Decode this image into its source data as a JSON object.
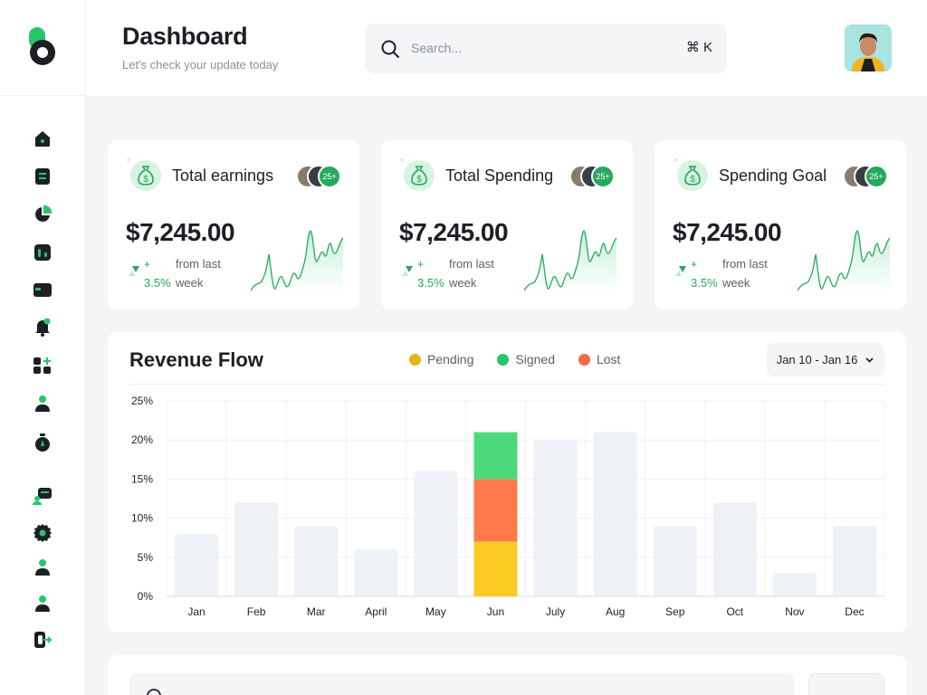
{
  "header": {
    "title": "Dashboard",
    "subtitle": "Let's check your update today",
    "search_placeholder": "Search...",
    "search_shortcut": "⌘ K"
  },
  "sidebar": {
    "items": [
      {
        "icon": "home-icon"
      },
      {
        "icon": "document-icon"
      },
      {
        "icon": "pie-chart-icon"
      },
      {
        "icon": "bar-chart-icon"
      },
      {
        "icon": "wallet-icon"
      },
      {
        "icon": "bell-icon"
      },
      {
        "icon": "apps-add-icon"
      },
      {
        "icon": "user-icon"
      },
      {
        "icon": "timer-icon"
      },
      {
        "icon": "message-user-icon"
      },
      {
        "icon": "gear-icon"
      },
      {
        "icon": "user-icon-2"
      },
      {
        "icon": "user-icon-3"
      },
      {
        "icon": "logout-icon"
      }
    ]
  },
  "cards": [
    {
      "title": "Total earnings",
      "value": "$7,245.00",
      "trend_sign": "+",
      "trend_pct": "3.5%",
      "trend_from": "from last",
      "trend_week": "week",
      "avatar_count": "25+"
    },
    {
      "title": "Total Spending",
      "value": "$7,245.00",
      "trend_sign": "+",
      "trend_pct": "3.5%",
      "trend_from": "from last",
      "trend_week": "week",
      "avatar_count": "25+"
    },
    {
      "title": "Spending Goal",
      "value": "$7,245.00",
      "trend_sign": "+",
      "trend_pct": "3.5%",
      "trend_from": "from last",
      "trend_week": "week",
      "avatar_count": "25+"
    }
  ],
  "revenue": {
    "title": "Revenue Flow",
    "legend": [
      {
        "label": "Pending",
        "color": "#e2b31b"
      },
      {
        "label": "Signed",
        "color": "#27c66b"
      },
      {
        "label": "Lost",
        "color": "#f36c42"
      }
    ],
    "date_range": "Jan 10 - Jan 16"
  },
  "chart_data": {
    "type": "bar",
    "title": "Revenue Flow",
    "categories": [
      "Jan",
      "Feb",
      "Mar",
      "April",
      "May",
      "Jun",
      "July",
      "Aug",
      "Sep",
      "Oct",
      "Nov",
      "Dec"
    ],
    "values": [
      8,
      12,
      9,
      6,
      16,
      21,
      20,
      21,
      9,
      12,
      3,
      9
    ],
    "highlight": {
      "category": "Jun",
      "stack": [
        {
          "name": "Pending",
          "value": 7,
          "color": "#fbcb24"
        },
        {
          "name": "Lost",
          "value": 8,
          "color": "#ff7a4a"
        },
        {
          "name": "Signed",
          "value": 6,
          "color": "#4cd97b"
        }
      ]
    },
    "yticks": [
      "0%",
      "5%",
      "10%",
      "15%",
      "20%",
      "25%"
    ],
    "ylim": [
      0,
      25
    ],
    "grid": true,
    "bar_color": "#eef1f5"
  },
  "colors": {
    "accent": "#27c66b",
    "dark": "#1d1f24"
  }
}
